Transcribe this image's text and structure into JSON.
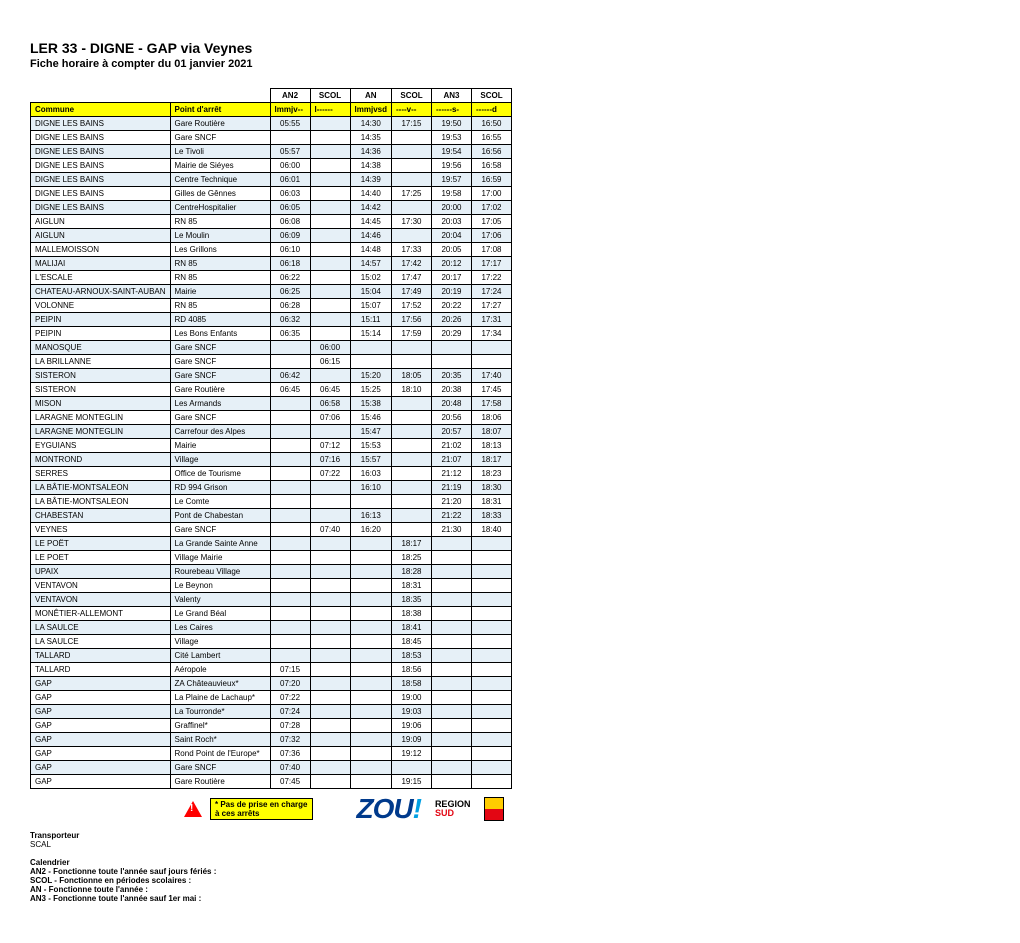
{
  "header": {
    "title": "LER 33 - DIGNE - GAP via Veynes",
    "subtitle": "Fiche horaire à compter du 01 janvier 2021"
  },
  "table": {
    "col_headers": {
      "commune": "Commune",
      "point": "Point d'arrêt"
    },
    "service_names": [
      "AN2",
      "SCOL",
      "AN",
      "SCOL",
      "AN3",
      "SCOL"
    ],
    "day_codes": [
      "lmmjv--",
      "l------",
      "lmmjvsd",
      "----v--",
      "------s-",
      "------d"
    ],
    "rows": [
      {
        "c": "DIGNE LES BAINS",
        "p": "Gare Routière",
        "t": [
          "05:55",
          "",
          "14:30",
          "17:15",
          "19:50",
          "16:50"
        ]
      },
      {
        "c": "DIGNE LES BAINS",
        "p": "Gare SNCF",
        "t": [
          "",
          "",
          "14:35",
          "",
          "19:53",
          "16:55"
        ]
      },
      {
        "c": "DIGNE LES BAINS",
        "p": "Le Tivoli",
        "t": [
          "05:57",
          "",
          "14:36",
          "",
          "19:54",
          "16:56"
        ]
      },
      {
        "c": "DIGNE LES BAINS",
        "p": "Mairie de Siéyes",
        "t": [
          "06:00",
          "",
          "14:38",
          "",
          "19:56",
          "16:58"
        ]
      },
      {
        "c": "DIGNE LES BAINS",
        "p": "Centre Technique",
        "t": [
          "06:01",
          "",
          "14:39",
          "",
          "19:57",
          "16:59"
        ]
      },
      {
        "c": "DIGNE LES BAINS",
        "p": "Gilles de Gênnes",
        "t": [
          "06:03",
          "",
          "14:40",
          "17:25",
          "19:58",
          "17:00"
        ]
      },
      {
        "c": "DIGNE LES BAINS",
        "p": "CentreHospitalier",
        "t": [
          "06:05",
          "",
          "14:42",
          "",
          "20:00",
          "17:02"
        ]
      },
      {
        "c": "AIGLUN",
        "p": "RN 85",
        "t": [
          "06:08",
          "",
          "14:45",
          "17:30",
          "20:03",
          "17:05"
        ]
      },
      {
        "c": "AIGLUN",
        "p": "Le Moulin",
        "t": [
          "06:09",
          "",
          "14:46",
          "",
          "20:04",
          "17:06"
        ]
      },
      {
        "c": "MALLEMOISSON",
        "p": "Les Grillons",
        "t": [
          "06:10",
          "",
          "14:48",
          "17:33",
          "20:05",
          "17:08"
        ]
      },
      {
        "c": "MALIJAI",
        "p": "RN 85",
        "t": [
          "06:18",
          "",
          "14:57",
          "17:42",
          "20:12",
          "17:17"
        ]
      },
      {
        "c": "L'ESCALE",
        "p": "RN 85",
        "t": [
          "06:22",
          "",
          "15:02",
          "17:47",
          "20:17",
          "17:22"
        ]
      },
      {
        "c": "CHATEAU-ARNOUX-SAINT-AUBAN",
        "p": "Mairie",
        "t": [
          "06:25",
          "",
          "15:04",
          "17:49",
          "20:19",
          "17:24"
        ]
      },
      {
        "c": "VOLONNE",
        "p": "RN 85",
        "t": [
          "06:28",
          "",
          "15:07",
          "17:52",
          "20:22",
          "17:27"
        ]
      },
      {
        "c": "PEIPIN",
        "p": "RD 4085",
        "t": [
          "06:32",
          "",
          "15:11",
          "17:56",
          "20:26",
          "17:31"
        ]
      },
      {
        "c": "PEIPIN",
        "p": "Les Bons Enfants",
        "t": [
          "06:35",
          "",
          "15:14",
          "17:59",
          "20:29",
          "17:34"
        ]
      },
      {
        "c": "MANOSQUE",
        "p": "Gare SNCF",
        "t": [
          "",
          "06:00",
          "",
          "",
          "",
          ""
        ]
      },
      {
        "c": "LA BRILLANNE",
        "p": "Gare SNCF",
        "t": [
          "",
          "06:15",
          "",
          "",
          "",
          ""
        ]
      },
      {
        "c": "SISTERON",
        "p": "Gare SNCF",
        "t": [
          "06:42",
          "",
          "15:20",
          "18:05",
          "20:35",
          "17:40"
        ]
      },
      {
        "c": "SISTERON",
        "p": "Gare Routière",
        "t": [
          "06:45",
          "06:45",
          "15:25",
          "18:10",
          "20:38",
          "17:45"
        ]
      },
      {
        "c": "MISON",
        "p": "Les Armands",
        "t": [
          "",
          "06:58",
          "15:38",
          "",
          "20:48",
          "17:58"
        ]
      },
      {
        "c": "LARAGNE MONTEGLIN",
        "p": "Gare SNCF",
        "t": [
          "",
          "07:06",
          "15:46",
          "",
          "20:56",
          "18:06"
        ]
      },
      {
        "c": "LARAGNE MONTEGLIN",
        "p": "Carrefour des Alpes",
        "t": [
          "",
          "",
          "15:47",
          "",
          "20:57",
          "18:07"
        ]
      },
      {
        "c": "EYGUIANS",
        "p": "Mairie",
        "t": [
          "",
          "07:12",
          "15:53",
          "",
          "21:02",
          "18:13"
        ]
      },
      {
        "c": "MONTROND",
        "p": "Village",
        "t": [
          "",
          "07:16",
          "15:57",
          "",
          "21:07",
          "18:17"
        ]
      },
      {
        "c": "SERRES",
        "p": "Office de Tourisme",
        "t": [
          "",
          "07:22",
          "16:03",
          "",
          "21:12",
          "18:23"
        ]
      },
      {
        "c": "LA BÂTIE-MONTSALEON",
        "p": "RD 994 Grison",
        "t": [
          "",
          "",
          "16:10",
          "",
          "21:19",
          "18:30"
        ]
      },
      {
        "c": "LA BÂTIE-MONTSALEON",
        "p": "Le Comte",
        "t": [
          "",
          "",
          "",
          "",
          "21:20",
          "18:31"
        ]
      },
      {
        "c": "CHABESTAN",
        "p": "Pont de Chabestan",
        "t": [
          "",
          "",
          "16:13",
          "",
          "21:22",
          "18:33"
        ]
      },
      {
        "c": "VEYNES",
        "p": "Gare SNCF",
        "t": [
          "",
          "07:40",
          "16:20",
          "",
          "21:30",
          "18:40"
        ]
      },
      {
        "c": "LE POËT",
        "p": "La Grande Sainte Anne",
        "t": [
          "",
          "",
          "",
          "18:17",
          "",
          ""
        ]
      },
      {
        "c": "LE POET",
        "p": "Village Mairie",
        "t": [
          "",
          "",
          "",
          "18:25",
          "",
          ""
        ]
      },
      {
        "c": "UPAIX",
        "p": "Rourebeau Village",
        "t": [
          "",
          "",
          "",
          "18:28",
          "",
          ""
        ]
      },
      {
        "c": "VENTAVON",
        "p": "Le Beynon",
        "t": [
          "",
          "",
          "",
          "18:31",
          "",
          ""
        ]
      },
      {
        "c": "VENTAVON",
        "p": "Valenty",
        "t": [
          "",
          "",
          "",
          "18:35",
          "",
          ""
        ]
      },
      {
        "c": "MONÊTIER-ALLEMONT",
        "p": "Le Grand Béal",
        "t": [
          "",
          "",
          "",
          "18:38",
          "",
          ""
        ]
      },
      {
        "c": "LA SAULCE",
        "p": "Les Caires",
        "t": [
          "",
          "",
          "",
          "18:41",
          "",
          ""
        ]
      },
      {
        "c": "LA SAULCE",
        "p": "Village",
        "t": [
          "",
          "",
          "",
          "18:45",
          "",
          ""
        ]
      },
      {
        "c": "TALLARD",
        "p": "Cité Lambert",
        "t": [
          "",
          "",
          "",
          "18:53",
          "",
          ""
        ]
      },
      {
        "c": "TALLARD",
        "p": "Aéropole",
        "t": [
          "07:15",
          "",
          "",
          "18:56",
          "",
          ""
        ]
      },
      {
        "c": "GAP",
        "p": "ZA Châteauvieux*",
        "t": [
          "07:20",
          "",
          "",
          "18:58",
          "",
          ""
        ]
      },
      {
        "c": "GAP",
        "p": "La Plaine de Lachaup*",
        "t": [
          "07:22",
          "",
          "",
          "19:00",
          "",
          ""
        ]
      },
      {
        "c": "GAP",
        "p": "La Tourronde*",
        "t": [
          "07:24",
          "",
          "",
          "19:03",
          "",
          ""
        ]
      },
      {
        "c": "GAP",
        "p": "Graffinel*",
        "t": [
          "07:28",
          "",
          "",
          "19:06",
          "",
          ""
        ]
      },
      {
        "c": "GAP",
        "p": "Saint Roch*",
        "t": [
          "07:32",
          "",
          "",
          "19:09",
          "",
          ""
        ]
      },
      {
        "c": "GAP",
        "p": "Rond Point de l'Europe*",
        "t": [
          "07:36",
          "",
          "",
          "19:12",
          "",
          ""
        ]
      },
      {
        "c": "GAP",
        "p": "Gare SNCF",
        "t": [
          "07:40",
          "",
          "",
          "",
          "",
          ""
        ]
      },
      {
        "c": "GAP",
        "p": "Gare Routière",
        "t": [
          "07:45",
          "",
          "",
          "19:15",
          "",
          ""
        ]
      }
    ]
  },
  "notice": {
    "line1": "* Pas de prise en charge",
    "line2": "à ces arrêts"
  },
  "logos": {
    "zou_main": "ZOU",
    "zou_ex": "!",
    "region_l1": "REGION",
    "region_l2": "SUD"
  },
  "footer": {
    "transporteur_label": "Transporteur",
    "transporteur_value": "SCAL",
    "calendrier_label": "Calendrier",
    "lines": [
      "AN2 - Fonctionne toute l'année sauf jours fériés :",
      "SCOL - Fonctionne en périodes scolaires :",
      "AN - Fonctionne toute l'année :",
      "AN3 - Fonctionne toute l'année sauf 1er mai :"
    ]
  },
  "styling": {
    "header_bg": "#ffff00",
    "alt_row_bg": "#e6f0f7",
    "border_color": "#000000",
    "font_size_body": 8
  }
}
